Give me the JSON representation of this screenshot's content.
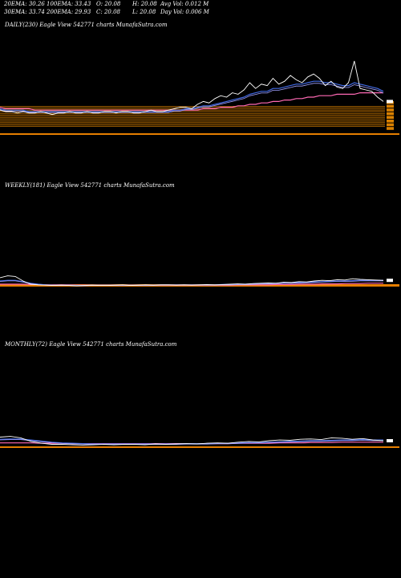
{
  "header": {
    "row1": [
      "20EMA: 30.26",
      "100EMA: 33.43",
      "O: 20.08",
      "H: 20.08",
      "Avg Vol: 0.012  M"
    ],
    "row2": [
      "30EMA: 33.74",
      "200EMA: 29.93",
      "C: 20.08",
      "L: 20.08",
      "Day Vol: 0.006  M"
    ]
  },
  "panels": {
    "daily": {
      "title": "DAILY(230) Eagle  View  542771 charts MunafaSutra.com"
    },
    "weekly": {
      "title": "WEEKLY(181) Eagle  View  542771 charts MunafaSutra.com"
    },
    "monthly": {
      "title": "MONTHLY(72) Eagle  View  542771 charts MunafaSutra.com"
    }
  },
  "colors": {
    "background": "#000000",
    "price": "#ffffff",
    "ema_fast": "#4169e1",
    "ema_mid": "#a0a0ff",
    "ema_slow": "#ff69b4",
    "ema_long": "#ffa500",
    "level_lines": "#d98000",
    "volume": "#ff8c00"
  },
  "chart_data": [
    {
      "type": "line",
      "name": "daily",
      "price": [
        16,
        15,
        15,
        14,
        15,
        14,
        14,
        15,
        14,
        13,
        14,
        14,
        15,
        14,
        14,
        15,
        14,
        14,
        15,
        15,
        14,
        15,
        15,
        14,
        14,
        15,
        16,
        15,
        15,
        16,
        17,
        18,
        18,
        17,
        20,
        22,
        21,
        24,
        26,
        25,
        28,
        27,
        30,
        35,
        31,
        34,
        33,
        38,
        34,
        36,
        40,
        37,
        35,
        39,
        41,
        38,
        33,
        36,
        32,
        31,
        35,
        50,
        31,
        30,
        29,
        25,
        22
      ],
      "ema_fast": [
        17,
        16,
        16,
        16,
        16,
        15,
        15,
        15,
        15,
        15,
        15,
        15,
        15,
        15,
        15,
        15,
        15,
        15,
        15,
        15,
        15,
        15,
        15,
        15,
        15,
        15,
        15,
        15,
        15,
        15,
        16,
        16,
        17,
        17,
        18,
        19,
        19,
        20,
        21,
        22,
        23,
        24,
        25,
        27,
        28,
        29,
        29,
        31,
        31,
        32,
        33,
        34,
        34,
        35,
        36,
        36,
        35,
        35,
        34,
        33,
        33,
        35,
        34,
        33,
        32,
        31,
        29
      ],
      "ema_slow": [
        18,
        17,
        17,
        17,
        17,
        17,
        16,
        16,
        16,
        16,
        16,
        16,
        16,
        16,
        16,
        16,
        16,
        16,
        16,
        16,
        16,
        16,
        16,
        16,
        16,
        16,
        16,
        16,
        16,
        16,
        16,
        16,
        16,
        16,
        16,
        17,
        17,
        17,
        18,
        18,
        18,
        19,
        19,
        20,
        20,
        21,
        21,
        22,
        22,
        23,
        23,
        24,
        24,
        25,
        25,
        26,
        26,
        26,
        27,
        27,
        27,
        27,
        28,
        28,
        28,
        28,
        28
      ],
      "levels": [
        44,
        42,
        40,
        38,
        36,
        34,
        32,
        30,
        28,
        26,
        24,
        22,
        20,
        18,
        16
      ]
    },
    {
      "type": "line",
      "name": "weekly",
      "price": [
        50,
        56,
        54,
        40,
        30,
        28,
        27,
        26,
        27,
        26,
        25,
        26,
        27,
        26,
        26,
        27,
        28,
        26,
        27,
        28,
        27,
        28,
        28,
        27,
        28,
        27,
        28,
        29,
        28,
        29,
        30,
        31,
        30,
        32,
        33,
        34,
        33,
        36,
        35,
        38,
        37,
        40,
        42,
        41,
        44,
        43,
        47,
        45,
        44,
        43,
        42
      ],
      "ema_fast": [
        40,
        42,
        42,
        38,
        33,
        30,
        28,
        27,
        27,
        27,
        26,
        26,
        27,
        27,
        27,
        27,
        27,
        27,
        27,
        27,
        27,
        28,
        28,
        28,
        28,
        28,
        28,
        28,
        28,
        29,
        29,
        30,
        30,
        31,
        32,
        32,
        33,
        34,
        34,
        35,
        36,
        37,
        38,
        39,
        40,
        40,
        41,
        42,
        42,
        42,
        42
      ],
      "ema_slow": [
        30,
        30,
        30,
        30,
        29,
        29,
        28,
        28,
        28,
        28,
        27,
        27,
        27,
        27,
        27,
        27,
        27,
        27,
        27,
        27,
        27,
        27,
        27,
        27,
        27,
        27,
        27,
        27,
        27,
        27,
        27,
        28,
        28,
        28,
        28,
        28,
        29,
        29,
        29,
        30,
        30,
        30,
        31,
        31,
        31,
        32,
        32,
        32,
        33,
        33,
        33
      ]
    },
    {
      "type": "line",
      "name": "monthly",
      "price": [
        50,
        52,
        48,
        38,
        33,
        30,
        30,
        29,
        28,
        29,
        30,
        29,
        30,
        30,
        29,
        31,
        30,
        31,
        32,
        31,
        33,
        34,
        33,
        36,
        38,
        37,
        40,
        42,
        41,
        44,
        45,
        43,
        48,
        47,
        44,
        46,
        42,
        40
      ],
      "ema_fast": [
        44,
        45,
        45,
        42,
        39,
        36,
        34,
        33,
        32,
        31,
        31,
        31,
        31,
        31,
        31,
        31,
        31,
        31,
        32,
        32,
        32,
        33,
        33,
        34,
        35,
        35,
        36,
        37,
        38,
        39,
        40,
        40,
        41,
        42,
        42,
        43,
        42,
        42
      ],
      "ema_slow": [
        34,
        34,
        34,
        34,
        33,
        33,
        33,
        32,
        32,
        32,
        32,
        32,
        32,
        32,
        32,
        32,
        32,
        32,
        32,
        32,
        32,
        32,
        32,
        33,
        33,
        33,
        33,
        34,
        34,
        34,
        35,
        35,
        35,
        36,
        36,
        36,
        36,
        36
      ]
    }
  ]
}
